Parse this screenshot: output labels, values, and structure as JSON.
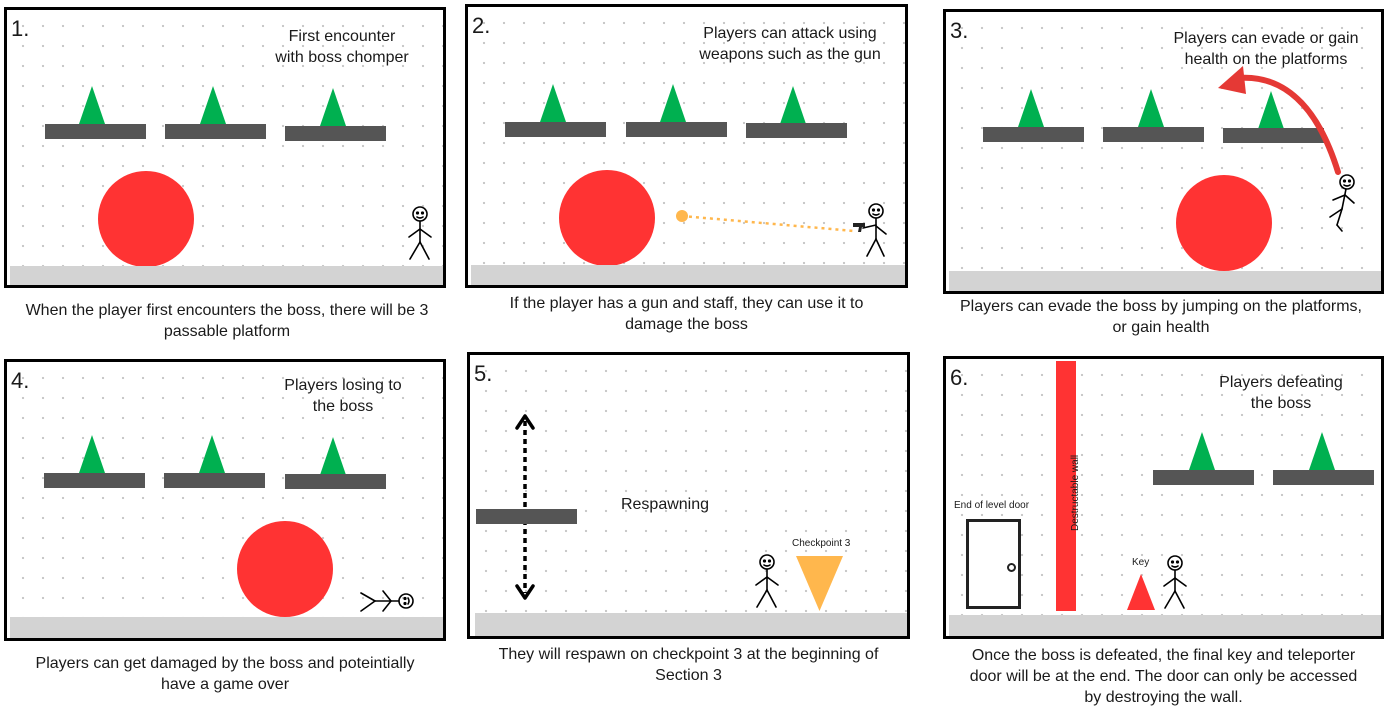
{
  "colors": {
    "boss": "#ff3333",
    "health": "#00b050",
    "platform": "#555555",
    "ground": "#d3d3d3",
    "checkpoint": "#ffb74d",
    "wall": "#ff3333",
    "key": "#ff3333",
    "bullet": "#ffb74d",
    "arrow": "#e53935"
  },
  "panels": [
    {
      "number": "1.",
      "note": [
        "First encounter",
        "with boss chomper"
      ],
      "caption": [
        "When the player first encounters the boss, there will be 3",
        "passable  platform"
      ]
    },
    {
      "number": "2.",
      "note": [
        "Players can attack using",
        "weapons such as the gun"
      ],
      "caption": [
        "If the player has a gun and staff, they can use it to",
        "damage the boss"
      ]
    },
    {
      "number": "3.",
      "note": [
        "Players can evade or gain",
        "health on the platforms"
      ],
      "caption": [
        "Players can evade the boss by jumping on the platforms,",
        "or gain health"
      ]
    },
    {
      "number": "4.",
      "note": [
        "Players losing to",
        "the boss"
      ],
      "caption": [
        "Players can get damaged by the boss and poteintially",
        "have a game over"
      ]
    },
    {
      "number": "5.",
      "note": [
        "Respawning"
      ],
      "caption": [
        "They will respawn on checkpoint 3 at the beginning of",
        "Section 3"
      ],
      "checkpoint_label": "Checkpoint 3"
    },
    {
      "number": "6.",
      "note": [
        "Players defeating",
        "the boss"
      ],
      "caption": [
        "Once the boss is defeated, the final key and teleporter",
        "door will be at the end. The door can only be accessed",
        "by destroying the wall."
      ],
      "door_label": "End of level door",
      "wall_label": "Destructable wall",
      "key_label": "Key"
    }
  ]
}
